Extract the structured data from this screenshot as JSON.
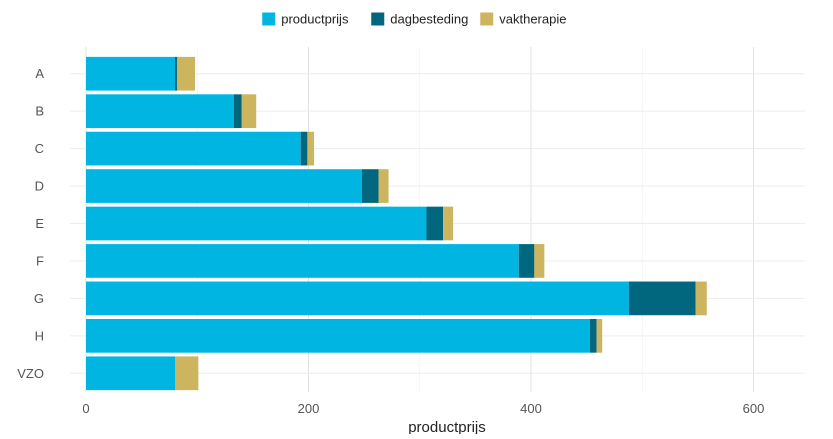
{
  "chart_data": {
    "type": "bar",
    "orientation": "horizontal",
    "stacked": true,
    "title": "",
    "xlabel": "productprijs",
    "ylabel": "",
    "categories": [
      "A",
      "B",
      "C",
      "D",
      "E",
      "F",
      "G",
      "H",
      "VZO"
    ],
    "series": [
      {
        "name": "productprijs",
        "color": "#00B5E2",
        "values": [
          80,
          133,
          193,
          248,
          306,
          389,
          488,
          453,
          80
        ]
      },
      {
        "name": "dagbesteding",
        "color": "#00677F",
        "values": [
          2,
          7,
          6,
          15,
          15,
          14,
          60,
          6,
          0
        ]
      },
      {
        "name": "vaktherapie",
        "color": "#CDB45E",
        "values": [
          16,
          13,
          6,
          9,
          9,
          9,
          10,
          5,
          21
        ]
      }
    ],
    "xlim": [
      0,
      670
    ],
    "xticks": [
      0,
      200,
      400,
      600
    ],
    "grid": true,
    "legend_position": "top"
  }
}
